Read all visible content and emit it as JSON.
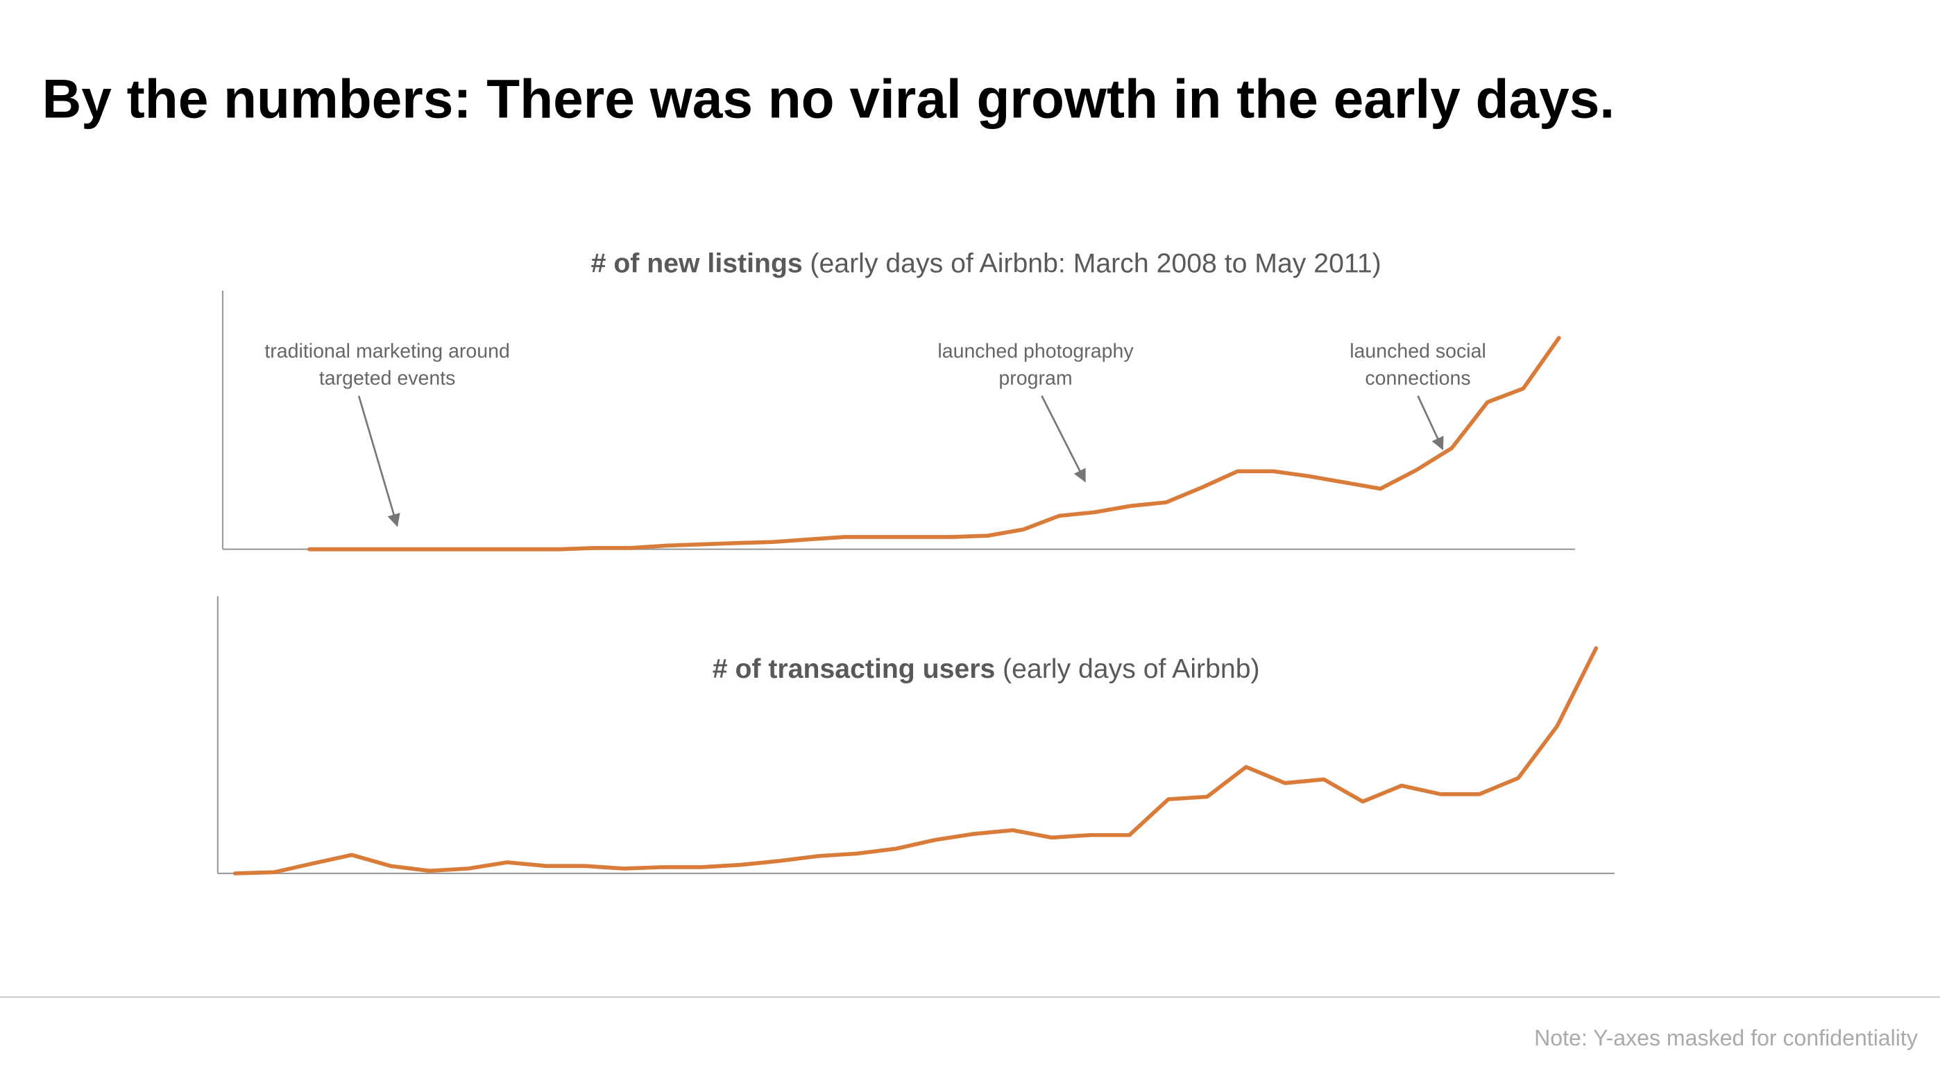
{
  "title": "By the numbers: There was no viral growth in the early days.",
  "note": "Note: Y-axes masked for confidentiality",
  "chart_data": [
    {
      "type": "line",
      "title": "# of new listings",
      "subtitle": "(early days of Airbnb: March 2008 to May 2011)",
      "color": "#d97c3a",
      "ylim": [
        0,
        120
      ],
      "values": [
        0,
        0,
        0,
        0,
        0,
        0,
        0,
        0,
        0.6,
        0.6,
        1.7,
        2.3,
        2.9,
        3.4,
        4.6,
        5.7,
        5.7,
        5.7,
        5.7,
        6.3,
        9.2,
        15.5,
        17.2,
        20.1,
        21.8,
        28.7,
        36.2,
        36.2,
        33.9,
        31,
        28.1,
        36.7,
        47,
        68.3,
        74.6,
        98.1
      ],
      "annotations": [
        {
          "text": [
            "traditional marketing around",
            "targeted events"
          ]
        },
        {
          "text": [
            "launched photography",
            "program"
          ]
        },
        {
          "text": [
            "launched social",
            "connections"
          ]
        }
      ]
    },
    {
      "type": "line",
      "title": "# of transacting users",
      "subtitle": "(early days of Airbnb)",
      "color": "#d97c3a",
      "ylim": [
        0,
        120
      ],
      "values": [
        0,
        0.5,
        4.3,
        8,
        3.2,
        1.1,
        2.1,
        4.8,
        3.2,
        3.2,
        2.1,
        2.7,
        2.7,
        3.7,
        5.4,
        7.5,
        8.6,
        10.7,
        14.5,
        17.1,
        18.7,
        15.5,
        16.6,
        16.6,
        32.1,
        33.2,
        46.1,
        39.1,
        40.7,
        31.1,
        38,
        34.3,
        34.3,
        41.3,
        63.8,
        97.5
      ]
    }
  ]
}
